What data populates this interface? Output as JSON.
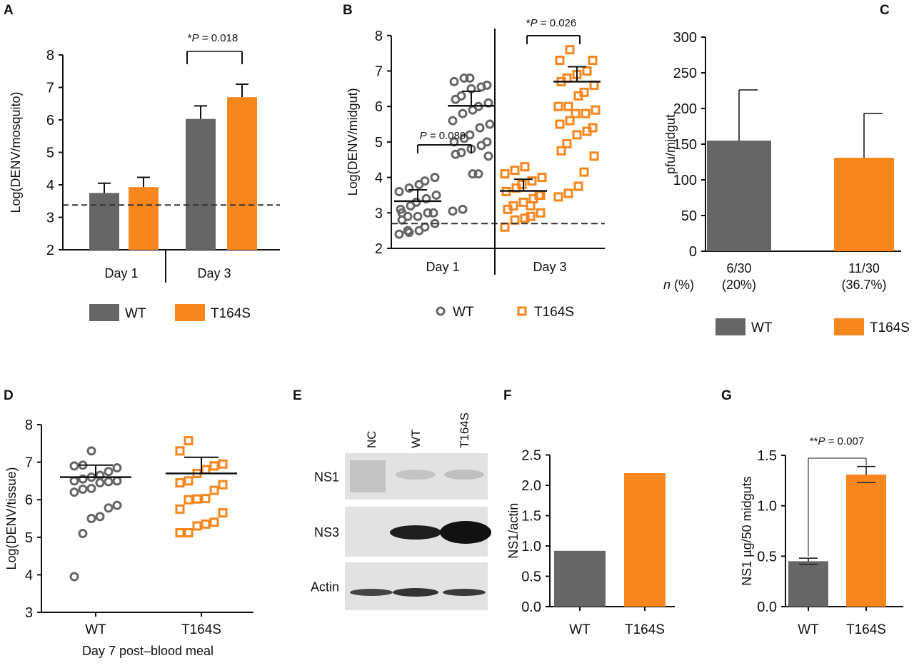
{
  "colors": {
    "WT": "#666666",
    "T164S": "#f7861c",
    "axis": "#111111"
  },
  "legend": {
    "WT": "WT",
    "T164S": "T164S"
  },
  "chart_data": [
    {
      "panel": "A",
      "type": "bar",
      "ylabel": "Log(DENV/mosquito)",
      "ylim": [
        2,
        8
      ],
      "yticks": [
        2,
        3,
        4,
        5,
        6,
        7,
        8
      ],
      "groups": [
        "Day 1",
        "Day 3"
      ],
      "series": [
        {
          "name": "WT",
          "values": [
            3.75,
            6.03
          ],
          "errors": [
            0.3,
            0.4
          ]
        },
        {
          "name": "T164S",
          "values": [
            3.93,
            6.7
          ],
          "errors": [
            0.3,
            0.4
          ]
        }
      ],
      "threshold": 3.38,
      "annotations": [
        {
          "group": "Day 3",
          "star": "*",
          "text": "P = 0.018"
        }
      ],
      "legend": "bottom"
    },
    {
      "panel": "B",
      "type": "scatter",
      "ylabel": "Log(DENV/midgut)",
      "ylim": [
        2,
        8
      ],
      "yticks": [
        2,
        3,
        4,
        5,
        6,
        7,
        8
      ],
      "groups": [
        "Day 1",
        "Day 3"
      ],
      "series": [
        {
          "name": "WT",
          "marker": "circle",
          "points": [
            [
              2.4,
              2.45,
              2.5,
              2.6,
              2.7,
              2.8,
              2.9,
              2.9,
              3.0,
              3.0,
              3.1,
              3.2,
              3.3,
              3.4,
              3.5,
              3.6,
              3.7,
              3.8,
              3.9,
              4.0,
              3.0,
              2.5
            ],
            [
              3.05,
              3.1,
              4.1,
              4.1,
              4.6,
              4.65,
              4.7,
              4.8,
              4.9,
              5.0,
              5.0,
              5.1,
              5.2,
              5.4,
              5.5,
              5.6,
              5.8,
              5.9,
              6.0,
              6.1,
              6.2,
              6.3,
              6.5,
              6.55,
              6.6,
              6.7,
              6.8,
              6.8
            ]
          ],
          "mean": [
            3.33,
            6.02
          ],
          "sem_upper": [
            3.65,
            6.43
          ]
        },
        {
          "name": "T164S",
          "marker": "square",
          "points": [
            [
              2.6,
              2.8,
              2.85,
              2.9,
              3.0,
              3.1,
              3.2,
              3.3,
              3.4,
              3.5,
              3.6,
              3.7,
              3.8,
              3.9,
              4.0,
              4.1,
              4.2,
              4.3,
              3.2,
              3.5
            ],
            [
              3.45,
              3.55,
              3.75,
              4.15,
              4.6,
              4.75,
              4.95,
              5.2,
              5.3,
              5.4,
              5.5,
              5.6,
              5.8,
              5.8,
              5.9,
              6.0,
              6.0,
              6.3,
              6.4,
              6.6,
              6.7,
              6.8,
              6.9,
              7.0,
              7.3,
              7.3,
              7.6
            ]
          ],
          "mean": [
            3.62,
            6.7
          ],
          "sem_upper": [
            3.95,
            7.12
          ]
        }
      ],
      "threshold": 2.7,
      "annotations": [
        {
          "group": "Day 1",
          "star": "",
          "text": "P = 0.089"
        },
        {
          "group": "Day 3",
          "star": "*",
          "text": "P = 0.026"
        }
      ],
      "legend": "bottom"
    },
    {
      "panel": "C",
      "type": "bar",
      "ylabel": "pfu/midgut",
      "ylim": [
        0,
        300
      ],
      "yticks": [
        0,
        50,
        100,
        150,
        200,
        250,
        300
      ],
      "categories": [
        "WT",
        "T164S"
      ],
      "values": [
        155,
        131
      ],
      "errors": [
        71,
        62
      ],
      "category_labels": [
        [
          "6/30",
          "(20%)"
        ],
        [
          "11/30",
          "(36.7%)"
        ]
      ],
      "row_label_italic": "n",
      "row_label": " (%)",
      "legend": "bottom"
    },
    {
      "panel": "D",
      "type": "scatter",
      "ylabel": "Log(DENV/tissue)",
      "xlabel": "Day 7 post–blood meal",
      "ylim": [
        3,
        8
      ],
      "yticks": [
        3,
        4,
        5,
        6,
        7,
        8
      ],
      "categories": [
        "WT",
        "T164S"
      ],
      "series": [
        {
          "name": "WT",
          "marker": "circle",
          "points": [
            3.95,
            5.1,
            5.5,
            5.55,
            5.78,
            5.85,
            6.2,
            6.28,
            6.3,
            6.45,
            6.48,
            6.5,
            6.5,
            6.55,
            6.6,
            6.65,
            6.75,
            6.85,
            6.9,
            6.92,
            7.3
          ],
          "mean": 6.6,
          "sem_upper": 6.92
        },
        {
          "name": "T164S",
          "marker": "square",
          "points": [
            5.12,
            5.12,
            5.3,
            5.35,
            5.4,
            5.65,
            5.75,
            6.0,
            6.02,
            6.03,
            6.25,
            6.4,
            6.45,
            6.5,
            6.7,
            6.8,
            6.9,
            6.95,
            7.3,
            7.57
          ],
          "mean": 6.7,
          "sem_upper": 7.13
        }
      ]
    },
    {
      "panel": "E",
      "type": "blot",
      "lanes": [
        "NC",
        "WT",
        "T164S"
      ],
      "rows": [
        "NS1",
        "NS3",
        "Actin"
      ]
    },
    {
      "panel": "F",
      "type": "bar",
      "ylabel": "NS1/actin",
      "ylim": [
        0,
        2.5
      ],
      "yticks": [
        "0.0",
        "0.5",
        "1.0",
        "1.5",
        "2.0",
        "2.5"
      ],
      "categories": [
        "WT",
        "T164S"
      ],
      "values": [
        0.92,
        2.2
      ]
    },
    {
      "panel": "G",
      "type": "bar",
      "ylabel": "NS1 µg/50 midguts",
      "ylim": [
        0,
        1.5
      ],
      "yticks": [
        "0.0",
        "0.5",
        "1.0",
        "1.5"
      ],
      "categories": [
        "WT",
        "T164S"
      ],
      "values": [
        0.45,
        1.31
      ],
      "errors": [
        0.03,
        0.08
      ],
      "annotations": [
        {
          "star": "**",
          "text": "P = 0.007"
        }
      ]
    }
  ]
}
